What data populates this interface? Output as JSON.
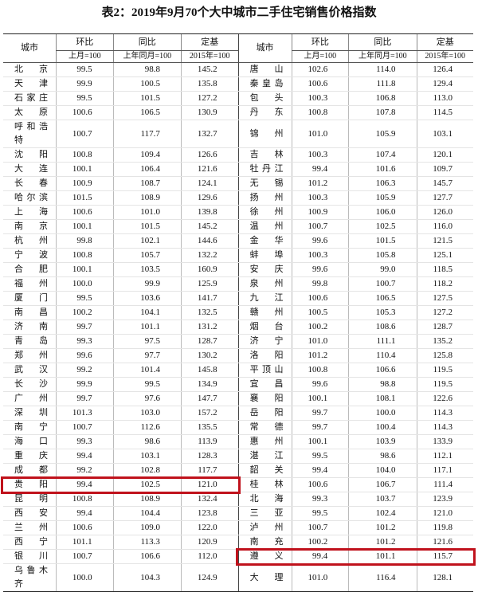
{
  "title": "表2：2019年9月70个大中城市二手住宅销售价格指数",
  "table": {
    "header": {
      "city": "城市",
      "hb": "环比",
      "hb_sub": "上月=100",
      "tb": "同比",
      "tb_sub": "上年同月=100",
      "dj": "定基",
      "dj_sub": "2015年=100"
    },
    "rows": [
      {
        "left": [
          "北京",
          "99.5",
          "98.8",
          "145.2"
        ],
        "right": [
          "唐山",
          "102.6",
          "114.0",
          "126.4"
        ]
      },
      {
        "left": [
          "天津",
          "99.9",
          "100.5",
          "135.8"
        ],
        "right": [
          "秦皇岛",
          "100.6",
          "111.8",
          "129.4"
        ]
      },
      {
        "left": [
          "石家庄",
          "99.5",
          "101.5",
          "127.2"
        ],
        "right": [
          "包头",
          "100.3",
          "106.8",
          "113.0"
        ]
      },
      {
        "left": [
          "太原",
          "100.6",
          "106.5",
          "130.9"
        ],
        "right": [
          "丹东",
          "100.8",
          "107.8",
          "114.5"
        ]
      },
      {
        "left": [
          "呼和浩特",
          "100.7",
          "117.7",
          "132.7"
        ],
        "right": [
          "锦州",
          "101.0",
          "105.9",
          "103.1"
        ]
      },
      {
        "left": [
          "沈阳",
          "100.8",
          "109.4",
          "126.6"
        ],
        "right": [
          "吉林",
          "100.3",
          "107.4",
          "120.1"
        ]
      },
      {
        "left": [
          "大连",
          "100.1",
          "106.4",
          "121.6"
        ],
        "right": [
          "牡丹江",
          "99.4",
          "101.6",
          "109.7"
        ]
      },
      {
        "left": [
          "长春",
          "100.9",
          "108.7",
          "124.1"
        ],
        "right": [
          "无锡",
          "101.2",
          "106.3",
          "145.7"
        ]
      },
      {
        "left": [
          "哈尔滨",
          "101.5",
          "108.9",
          "129.6"
        ],
        "right": [
          "扬州",
          "100.3",
          "105.9",
          "127.7"
        ]
      },
      {
        "left": [
          "上海",
          "100.6",
          "101.0",
          "139.8"
        ],
        "right": [
          "徐州",
          "100.9",
          "106.0",
          "126.0"
        ]
      },
      {
        "left": [
          "南京",
          "100.1",
          "101.5",
          "145.2"
        ],
        "right": [
          "温州",
          "100.7",
          "102.5",
          "116.0"
        ]
      },
      {
        "left": [
          "杭州",
          "99.8",
          "102.1",
          "144.6"
        ],
        "right": [
          "金华",
          "99.6",
          "101.5",
          "121.5"
        ]
      },
      {
        "left": [
          "宁波",
          "100.8",
          "105.7",
          "132.2"
        ],
        "right": [
          "蚌埠",
          "100.3",
          "105.8",
          "125.1"
        ]
      },
      {
        "left": [
          "合肥",
          "100.1",
          "103.5",
          "160.9"
        ],
        "right": [
          "安庆",
          "99.6",
          "99.0",
          "118.5"
        ]
      },
      {
        "left": [
          "福州",
          "100.0",
          "99.9",
          "125.9"
        ],
        "right": [
          "泉州",
          "99.8",
          "100.7",
          "118.2"
        ]
      },
      {
        "left": [
          "厦门",
          "99.5",
          "103.6",
          "141.7"
        ],
        "right": [
          "九江",
          "100.6",
          "106.5",
          "127.5"
        ]
      },
      {
        "left": [
          "南昌",
          "100.2",
          "104.1",
          "132.5"
        ],
        "right": [
          "赣州",
          "100.5",
          "105.3",
          "127.2"
        ]
      },
      {
        "left": [
          "济南",
          "99.7",
          "101.1",
          "131.2"
        ],
        "right": [
          "烟台",
          "100.2",
          "108.6",
          "128.7"
        ]
      },
      {
        "left": [
          "青岛",
          "99.3",
          "97.5",
          "128.7"
        ],
        "right": [
          "济宁",
          "101.0",
          "111.1",
          "135.2"
        ]
      },
      {
        "left": [
          "郑州",
          "99.6",
          "97.7",
          "130.2"
        ],
        "right": [
          "洛阳",
          "101.2",
          "110.4",
          "125.8"
        ]
      },
      {
        "left": [
          "武汉",
          "99.2",
          "101.4",
          "145.8"
        ],
        "right": [
          "平顶山",
          "100.8",
          "106.6",
          "119.5"
        ]
      },
      {
        "left": [
          "长沙",
          "99.9",
          "99.5",
          "134.9"
        ],
        "right": [
          "宜昌",
          "99.6",
          "98.8",
          "119.5"
        ]
      },
      {
        "left": [
          "广州",
          "99.7",
          "97.6",
          "147.7"
        ],
        "right": [
          "襄阳",
          "100.1",
          "108.1",
          "122.6"
        ]
      },
      {
        "left": [
          "深圳",
          "101.3",
          "103.0",
          "157.2"
        ],
        "right": [
          "岳阳",
          "99.7",
          "100.0",
          "114.3"
        ]
      },
      {
        "left": [
          "南宁",
          "100.7",
          "112.6",
          "135.5"
        ],
        "right": [
          "常德",
          "99.7",
          "100.4",
          "114.3"
        ]
      },
      {
        "left": [
          "海口",
          "99.3",
          "98.6",
          "113.9"
        ],
        "right": [
          "惠州",
          "100.1",
          "103.9",
          "133.9"
        ]
      },
      {
        "left": [
          "重庆",
          "99.4",
          "103.1",
          "128.3"
        ],
        "right": [
          "湛江",
          "99.5",
          "98.6",
          "112.1"
        ]
      },
      {
        "left": [
          "成都",
          "99.2",
          "102.8",
          "117.7"
        ],
        "right": [
          "韶关",
          "99.4",
          "104.0",
          "117.1"
        ]
      },
      {
        "left": [
          "贵阳",
          "99.4",
          "102.5",
          "121.0"
        ],
        "right": [
          "桂林",
          "100.6",
          "106.7",
          "111.4"
        ]
      },
      {
        "left": [
          "昆明",
          "100.8",
          "108.9",
          "132.4"
        ],
        "right": [
          "北海",
          "99.3",
          "103.7",
          "123.9"
        ]
      },
      {
        "left": [
          "西安",
          "99.4",
          "104.4",
          "123.8"
        ],
        "right": [
          "三亚",
          "99.5",
          "102.4",
          "121.0"
        ]
      },
      {
        "left": [
          "兰州",
          "100.6",
          "109.0",
          "122.0"
        ],
        "right": [
          "泸州",
          "100.7",
          "101.2",
          "119.8"
        ]
      },
      {
        "left": [
          "西宁",
          "101.1",
          "113.3",
          "120.9"
        ],
        "right": [
          "南充",
          "100.2",
          "101.2",
          "121.6"
        ]
      },
      {
        "left": [
          "银川",
          "100.7",
          "106.6",
          "112.0"
        ],
        "right": [
          "遵义",
          "99.4",
          "101.1",
          "115.7"
        ]
      },
      {
        "left": [
          "乌鲁木齐",
          "100.0",
          "104.3",
          "124.9"
        ],
        "right": [
          "大理",
          "101.0",
          "116.4",
          "128.1"
        ]
      }
    ]
  }
}
